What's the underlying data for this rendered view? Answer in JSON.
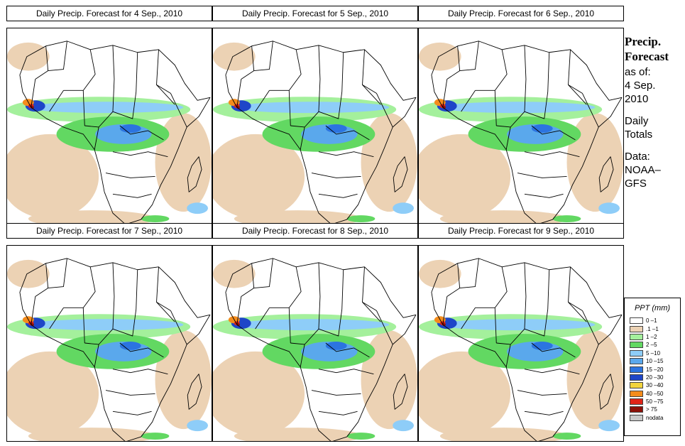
{
  "panels": [
    {
      "title": "Daily Precip. Forecast for  4 Sep., 2010"
    },
    {
      "title": "Daily Precip. Forecast for  5 Sep., 2010"
    },
    {
      "title": "Daily Precip. Forecast for  6 Sep., 2010"
    },
    {
      "title": "Daily Precip. Forecast for  7 Sep., 2010"
    },
    {
      "title": "Daily Precip. Forecast for  8 Sep., 2010"
    },
    {
      "title": "Daily Precip. Forecast for  9 Sep., 2010"
    }
  ],
  "info": {
    "heading_1": "Precip.",
    "heading_2": "Forecast",
    "asof_1": "as of:",
    "asof_2": "4 Sep.",
    "asof_3": "2010",
    "daily_1": "Daily",
    "daily_2": "Totals",
    "data_1": "Data:",
    "data_2": "NOAA–",
    "data_3": "GFS"
  },
  "legend": {
    "title": "PPT (mm)",
    "items": [
      {
        "label": "0 –1",
        "color": "#ffffff"
      },
      {
        "label": ".1 –1",
        "color": "#ecd2b4"
      },
      {
        "label": "1 –2",
        "color": "#a4f09c"
      },
      {
        "label": "2 –5",
        "color": "#62d862"
      },
      {
        "label": "5 –10",
        "color": "#8ecdf8"
      },
      {
        "label": "10 –15",
        "color": "#5aa8ec"
      },
      {
        "label": "15 –20",
        "color": "#2c74e0"
      },
      {
        "label": "20 –30",
        "color": "#1e46c8"
      },
      {
        "label": "30 –40",
        "color": "#f2d43c"
      },
      {
        "label": "40 –50",
        "color": "#f48c1c"
      },
      {
        "label": "50 –75",
        "color": "#e02418"
      },
      {
        "label": "> 75",
        "color": "#8c1008"
      },
      {
        "label": "nodata",
        "color": "#c8c8c8"
      }
    ]
  }
}
